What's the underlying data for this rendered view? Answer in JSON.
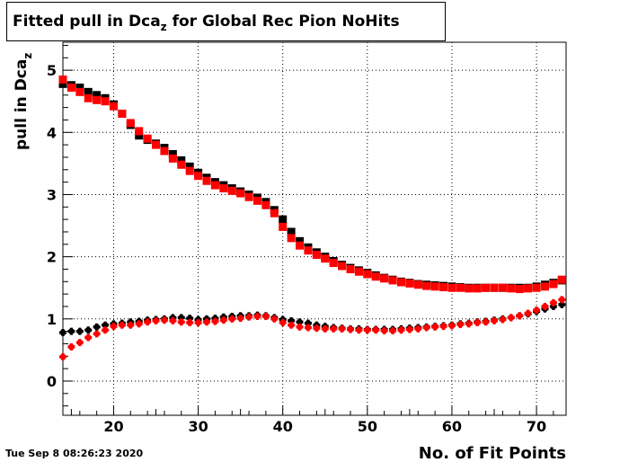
{
  "title": {
    "main": "Fitted pull in Dca",
    "sub": "z",
    "rest": " for Global Rec Pion NoHits"
  },
  "ylabel": {
    "main": "pull in Dca",
    "sub": "z"
  },
  "xlabel": "No. of Fit Points",
  "timestamp": "Tue Sep  8 08:26:23 2020",
  "colors": {
    "series_black": "#000000",
    "series_red": "#ff0000",
    "grid": "#000000",
    "frame": "#000000"
  },
  "chart_data": {
    "type": "scatter",
    "title": "Fitted pull in Dca_z for Global Rec Pion NoHits",
    "xlabel": "No. of Fit Points",
    "ylabel": "pull in Dca_z",
    "xlim": [
      14,
      73.5
    ],
    "ylim": [
      -0.55,
      5.45
    ],
    "x_ticks": [
      20,
      30,
      40,
      50,
      60,
      70
    ],
    "y_ticks": [
      0,
      1,
      2,
      3,
      4,
      5
    ],
    "grid": true,
    "legend": "none",
    "x": [
      14,
      15,
      16,
      17,
      18,
      19,
      20,
      21,
      22,
      23,
      24,
      25,
      26,
      27,
      28,
      29,
      30,
      31,
      32,
      33,
      34,
      35,
      36,
      37,
      38,
      39,
      40,
      41,
      42,
      43,
      44,
      45,
      46,
      47,
      48,
      49,
      50,
      51,
      52,
      53,
      54,
      55,
      56,
      57,
      58,
      59,
      60,
      61,
      62,
      63,
      64,
      65,
      66,
      67,
      68,
      69,
      70,
      71,
      72,
      73
    ],
    "series": [
      {
        "color": "#000000",
        "marker": "square",
        "values": [
          4.78,
          4.76,
          4.72,
          4.65,
          4.6,
          4.55,
          4.45,
          4.3,
          4.12,
          3.95,
          3.88,
          3.82,
          3.75,
          3.65,
          3.55,
          3.45,
          3.35,
          3.27,
          3.2,
          3.15,
          3.1,
          3.05,
          3.0,
          2.95,
          2.88,
          2.75,
          2.6,
          2.4,
          2.25,
          2.15,
          2.07,
          2.0,
          1.93,
          1.87,
          1.82,
          1.78,
          1.74,
          1.7,
          1.66,
          1.63,
          1.6,
          1.58,
          1.56,
          1.55,
          1.54,
          1.53,
          1.52,
          1.51,
          1.5,
          1.5,
          1.5,
          1.5,
          1.5,
          1.5,
          1.5,
          1.5,
          1.52,
          1.55,
          1.58,
          1.62
        ]
      },
      {
        "color": "#ff0000",
        "marker": "square",
        "values": [
          4.85,
          4.72,
          4.65,
          4.55,
          4.52,
          4.5,
          4.42,
          4.3,
          4.15,
          4.02,
          3.9,
          3.8,
          3.7,
          3.58,
          3.48,
          3.38,
          3.3,
          3.22,
          3.15,
          3.1,
          3.06,
          3.02,
          2.96,
          2.9,
          2.83,
          2.7,
          2.48,
          2.3,
          2.18,
          2.1,
          2.03,
          1.97,
          1.9,
          1.85,
          1.8,
          1.76,
          1.72,
          1.68,
          1.65,
          1.62,
          1.59,
          1.57,
          1.55,
          1.53,
          1.52,
          1.51,
          1.5,
          1.5,
          1.49,
          1.49,
          1.5,
          1.5,
          1.5,
          1.49,
          1.48,
          1.49,
          1.5,
          1.52,
          1.56,
          1.63
        ]
      },
      {
        "color": "#000000",
        "marker": "circle",
        "values": [
          0.78,
          0.8,
          0.8,
          0.82,
          0.87,
          0.9,
          0.92,
          0.93,
          0.95,
          0.96,
          0.98,
          0.99,
          1.0,
          1.02,
          1.02,
          1.01,
          0.99,
          1.0,
          1.01,
          1.03,
          1.04,
          1.05,
          1.05,
          1.06,
          1.05,
          1.02,
          0.99,
          0.97,
          0.95,
          0.93,
          0.9,
          0.88,
          0.86,
          0.85,
          0.84,
          0.84,
          0.83,
          0.83,
          0.83,
          0.83,
          0.84,
          0.85,
          0.86,
          0.87,
          0.88,
          0.89,
          0.9,
          0.92,
          0.93,
          0.95,
          0.96,
          0.98,
          1.0,
          1.02,
          1.05,
          1.08,
          1.12,
          1.16,
          1.2,
          1.23
        ]
      },
      {
        "color": "#ff0000",
        "marker": "circle",
        "values": [
          0.39,
          0.55,
          0.62,
          0.7,
          0.76,
          0.82,
          0.88,
          0.9,
          0.9,
          0.92,
          0.95,
          0.97,
          0.98,
          0.97,
          0.95,
          0.94,
          0.94,
          0.95,
          0.96,
          0.98,
          1.0,
          1.01,
          1.03,
          1.04,
          1.04,
          1.0,
          0.94,
          0.9,
          0.87,
          0.86,
          0.85,
          0.84,
          0.84,
          0.84,
          0.83,
          0.82,
          0.82,
          0.82,
          0.81,
          0.81,
          0.82,
          0.83,
          0.84,
          0.86,
          0.87,
          0.88,
          0.89,
          0.91,
          0.92,
          0.94,
          0.95,
          0.97,
          0.99,
          1.02,
          1.05,
          1.09,
          1.14,
          1.2,
          1.26,
          1.31
        ]
      }
    ]
  }
}
